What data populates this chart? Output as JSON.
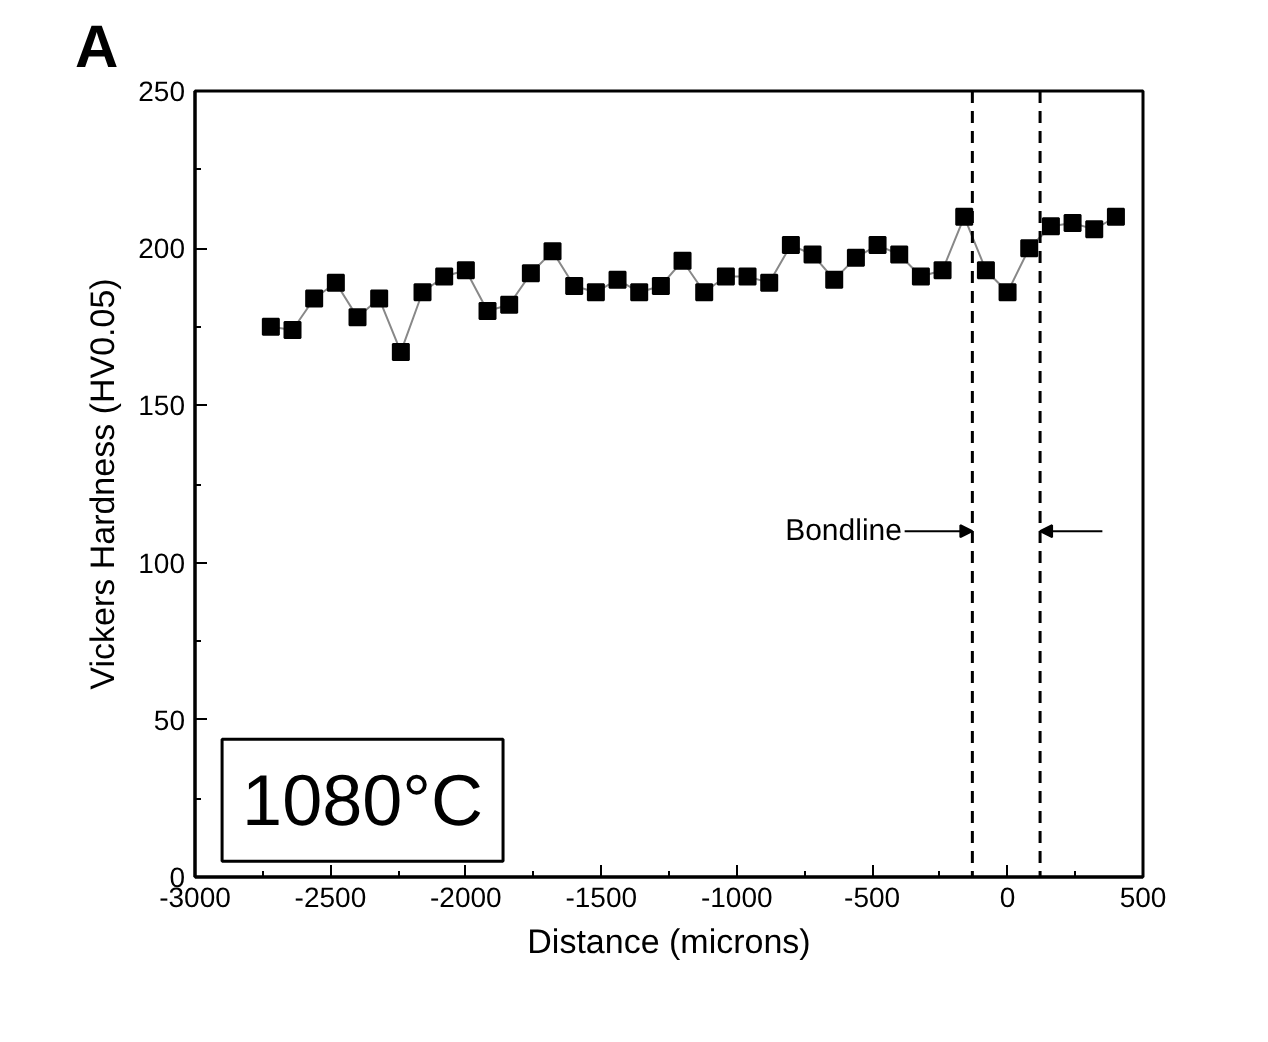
{
  "chart_data": {
    "type": "line",
    "xlabel": "Distance (microns)",
    "ylabel": "Vickers Hardness (HV0.05)",
    "x": [
      -2720,
      -2640,
      -2560,
      -2480,
      -2400,
      -2320,
      -2240,
      -2160,
      -2080,
      -2000,
      -1920,
      -1840,
      -1760,
      -1680,
      -1600,
      -1520,
      -1440,
      -1360,
      -1280,
      -1200,
      -1120,
      -1040,
      -960,
      -880,
      -800,
      -720,
      -640,
      -560,
      -480,
      -400,
      -320,
      -240,
      -160,
      -80,
      0,
      80,
      160,
      240,
      320,
      400
    ],
    "series": [
      {
        "color": "#000000",
        "values": [
          175,
          174,
          184,
          189,
          178,
          184,
          167,
          186,
          191,
          193,
          180,
          182,
          192,
          199,
          188,
          186,
          190,
          186,
          188,
          196,
          186,
          191,
          191,
          189,
          201,
          198,
          190,
          197,
          201,
          198,
          191,
          193,
          210,
          193,
          186,
          200,
          207,
          208,
          206,
          210
        ]
      }
    ],
    "marker": "square",
    "line_style": "solid",
    "grid": false,
    "xlim": [
      -3000,
      500
    ],
    "xticks": [
      -3000,
      -2500,
      -2000,
      -1500,
      -1000,
      -500,
      0,
      500
    ],
    "ylim": [
      0,
      250
    ],
    "yticks": [
      0,
      50,
      100,
      150,
      200,
      250
    ],
    "ref_lines": [
      {
        "axis": "x",
        "value": -130,
        "line_style": "dashed",
        "color": "#000000"
      },
      {
        "axis": "x",
        "value": 120,
        "line_style": "dashed",
        "color": "#000000"
      }
    ],
    "annotations": [
      "A",
      "1080°C",
      {
        "text": "Bondline",
        "x": -130,
        "y": 110
      }
    ]
  }
}
